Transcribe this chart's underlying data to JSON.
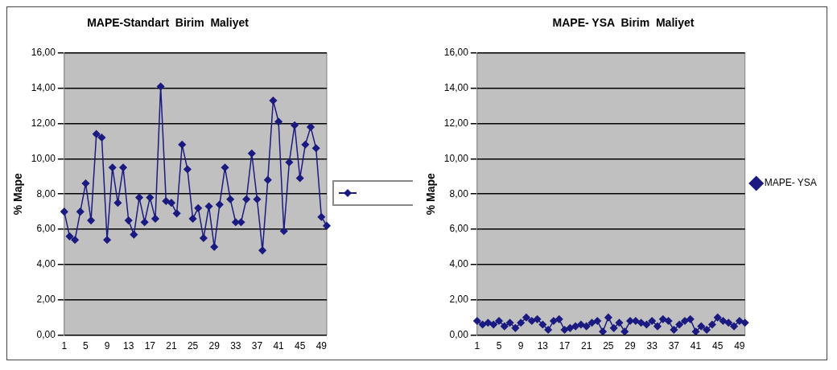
{
  "chart_data": [
    {
      "type": "line",
      "title": "MAPE-Standart  Birim  Maliyet",
      "ylabel": "% Mape",
      "categories": [
        "1",
        null,
        null,
        null,
        "5",
        null,
        null,
        null,
        "9",
        null,
        null,
        null,
        "13",
        null,
        null,
        null,
        "17",
        null,
        null,
        null,
        "21",
        null,
        null,
        null,
        "25",
        null,
        null,
        null,
        "29",
        null,
        null,
        null,
        "33",
        null,
        null,
        null,
        "37",
        null,
        null,
        null,
        "41",
        null,
        null,
        null,
        "45",
        null,
        null,
        null,
        "49",
        null
      ],
      "series": [
        {
          "color": "#1a1a80",
          "values": [
            7.0,
            5.6,
            5.4,
            7.0,
            8.6,
            6.5,
            11.4,
            11.2,
            5.4,
            9.5,
            7.5,
            9.5,
            6.5,
            5.7,
            7.8,
            6.4,
            7.8,
            6.6,
            14.1,
            7.6,
            7.5,
            6.9,
            10.8,
            9.4,
            6.6,
            7.2,
            5.5,
            7.3,
            5.0,
            7.4,
            9.5,
            7.7,
            6.4,
            6.4,
            7.7,
            10.3,
            7.7,
            4.8,
            8.8,
            13.3,
            12.1,
            5.9,
            9.8,
            11.9,
            8.9,
            10.8,
            11.8,
            10.6,
            6.7,
            6.2
          ]
        }
      ],
      "ylim": [
        0,
        16
      ],
      "yticks": [
        {
          "value": 0,
          "label": "0,00"
        },
        {
          "value": 2,
          "label": "2,00"
        },
        {
          "value": 4,
          "label": "4,00"
        },
        {
          "value": 6,
          "label": "6,00"
        },
        {
          "value": 8,
          "label": "8,00"
        },
        {
          "value": 10,
          "label": "10,00"
        },
        {
          "value": 12,
          "label": "12,00"
        },
        {
          "value": 14,
          "label": "14,00"
        },
        {
          "value": 16,
          "label": "16,00"
        }
      ],
      "grid": "y",
      "marker": "diamond",
      "line_style": "solid"
    },
    {
      "type": "line",
      "title": "MAPE- YSA  Birim  Maliyet",
      "ylabel": "% Mape",
      "categories": [
        "1",
        null,
        null,
        null,
        "5",
        null,
        null,
        null,
        "9",
        null,
        null,
        null,
        "13",
        null,
        null,
        null,
        "17",
        null,
        null,
        null,
        "21",
        null,
        null,
        null,
        "25",
        null,
        null,
        null,
        "29",
        null,
        null,
        null,
        "33",
        null,
        null,
        null,
        "37",
        null,
        null,
        null,
        "41",
        null,
        null,
        null,
        "45",
        null,
        null,
        null,
        "49",
        null
      ],
      "series": [
        {
          "name": "MAPE- YSA",
          "color": "#1a1a80",
          "values": [
            0.8,
            0.6,
            0.7,
            0.6,
            0.8,
            0.5,
            0.7,
            0.4,
            0.7,
            1.0,
            0.8,
            0.9,
            0.6,
            0.3,
            0.8,
            0.9,
            0.3,
            0.4,
            0.5,
            0.6,
            0.5,
            0.7,
            0.8,
            0.2,
            1.0,
            0.4,
            0.7,
            0.2,
            0.8,
            0.8,
            0.7,
            0.6,
            0.8,
            0.5,
            0.9,
            0.8,
            0.3,
            0.6,
            0.8,
            0.9,
            0.2,
            0.5,
            0.3,
            0.6,
            1.0,
            0.8,
            0.7,
            0.5,
            0.8,
            0.7
          ]
        }
      ],
      "ylim": [
        0,
        16
      ],
      "yticks": [
        {
          "value": 0,
          "label": "0,00"
        },
        {
          "value": 2,
          "label": "2,00"
        },
        {
          "value": 4,
          "label": "4,00"
        },
        {
          "value": 6,
          "label": "6,00"
        },
        {
          "value": 8,
          "label": "8,00"
        },
        {
          "value": 10,
          "label": "10,00"
        },
        {
          "value": 12,
          "label": "12,00"
        },
        {
          "value": 14,
          "label": "14,00"
        },
        {
          "value": 16,
          "label": "16,00"
        }
      ],
      "grid": "y",
      "legend": "right",
      "marker": "diamond",
      "line_style": "solid"
    }
  ]
}
